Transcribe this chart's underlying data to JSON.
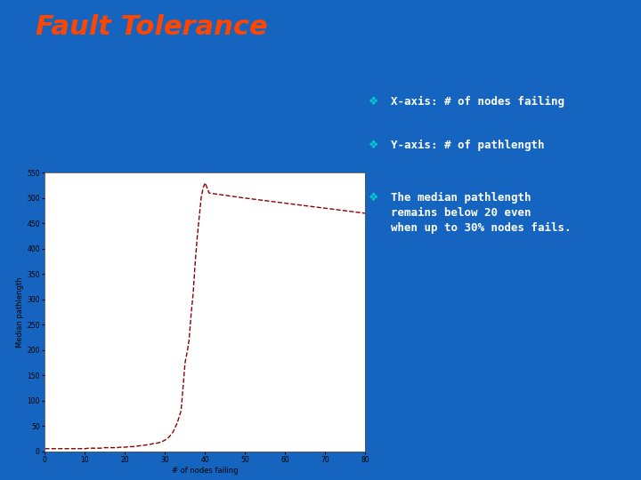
{
  "title": "Fault Tolerance",
  "title_color": "#FF4500",
  "slide_bg": "#1565C0",
  "underline_color": "#5BB8F5",
  "bullet_color": "#00CFCF",
  "bullet_text_color": "#FFFFFF",
  "bullet_font": "monospace",
  "bullets": [
    "X-axis: # of nodes failing",
    "Y-axis: # of pathlength",
    "The median pathlength\nremains below 20 even\nwhen up to 30% nodes fails."
  ],
  "plot_bg": "#FFFFFF",
  "line_color": "#8B0000",
  "xlabel": "# of nodes failing",
  "ylabel": "Median pathlength",
  "xlim": [
    0,
    80
  ],
  "ylim": [
    0,
    550
  ],
  "xticks": [
    0,
    10,
    20,
    30,
    40,
    50,
    60,
    70,
    80
  ],
  "yticks": [
    0,
    50,
    100,
    150,
    200,
    250,
    300,
    350,
    400,
    450,
    500,
    550
  ],
  "x_data": [
    0,
    1,
    2,
    3,
    4,
    5,
    6,
    7,
    8,
    9,
    10,
    11,
    12,
    13,
    14,
    15,
    16,
    17,
    18,
    19,
    20,
    21,
    22,
    23,
    24,
    25,
    26,
    27,
    28,
    29,
    30,
    31,
    32,
    33,
    34,
    35,
    35.5,
    36,
    36.5,
    37,
    37.5,
    38,
    38.5,
    39,
    39.5,
    40,
    40.5,
    41,
    50,
    60,
    70,
    80
  ],
  "y_data": [
    5,
    5,
    5,
    5,
    5,
    5,
    5,
    5,
    5,
    5,
    5,
    6,
    6,
    6,
    6,
    7,
    7,
    7,
    7,
    8,
    8,
    9,
    9,
    10,
    11,
    12,
    13,
    15,
    16,
    18,
    22,
    28,
    38,
    55,
    80,
    175,
    195,
    220,
    270,
    310,
    370,
    420,
    460,
    500,
    520,
    530,
    520,
    510,
    500,
    490,
    480,
    470
  ]
}
